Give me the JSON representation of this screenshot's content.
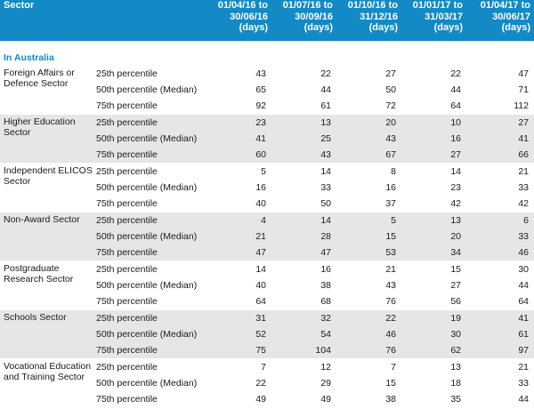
{
  "header": {
    "sector_label": "Sector",
    "periods": [
      {
        "line1": "01/04/16 to",
        "line2": "30/06/16",
        "unit": "(days)"
      },
      {
        "line1": "01/07/16 to",
        "line2": "30/09/16",
        "unit": "(days)"
      },
      {
        "line1": "01/10/16 to",
        "line2": "31/12/16",
        "unit": "(days)"
      },
      {
        "line1": "01/01/17 to",
        "line2": "31/03/17",
        "unit": "(days)"
      },
      {
        "line1": "01/04/17 to",
        "line2": "30/06/17",
        "unit": "(days)"
      }
    ]
  },
  "region": "In Australia",
  "percentile_labels": [
    "25th percentile",
    "50th percentile (Median)",
    "75th percentile"
  ],
  "sectors": [
    {
      "name": "Foreign Affairs or Defence Sector",
      "rows": [
        [
          43,
          22,
          27,
          22,
          47
        ],
        [
          65,
          44,
          50,
          44,
          71
        ],
        [
          92,
          61,
          72,
          64,
          112
        ]
      ]
    },
    {
      "name": "Higher Education Sector",
      "rows": [
        [
          23,
          13,
          20,
          10,
          27
        ],
        [
          41,
          25,
          43,
          16,
          41
        ],
        [
          60,
          43,
          67,
          27,
          66
        ]
      ]
    },
    {
      "name": "Independent ELICOS Sector",
      "rows": [
        [
          5,
          14,
          8,
          14,
          21
        ],
        [
          16,
          33,
          16,
          23,
          33
        ],
        [
          40,
          50,
          37,
          42,
          42
        ]
      ]
    },
    {
      "name": "Non-Award Sector",
      "rows": [
        [
          4,
          14,
          5,
          13,
          6
        ],
        [
          21,
          28,
          15,
          20,
          33
        ],
        [
          47,
          47,
          53,
          34,
          46
        ]
      ]
    },
    {
      "name": "Postgraduate Research Sector",
      "rows": [
        [
          14,
          16,
          21,
          15,
          30
        ],
        [
          40,
          38,
          43,
          27,
          44
        ],
        [
          64,
          68,
          76,
          56,
          64
        ]
      ]
    },
    {
      "name": "Schools Sector",
      "rows": [
        [
          31,
          32,
          22,
          19,
          41
        ],
        [
          52,
          54,
          46,
          30,
          61
        ],
        [
          75,
          104,
          76,
          62,
          97
        ]
      ]
    },
    {
      "name": "Vocational Education and Training Sector",
      "rows": [
        [
          7,
          12,
          7,
          13,
          21
        ],
        [
          22,
          29,
          15,
          18,
          33
        ],
        [
          49,
          49,
          38,
          35,
          44
        ]
      ]
    }
  ]
}
